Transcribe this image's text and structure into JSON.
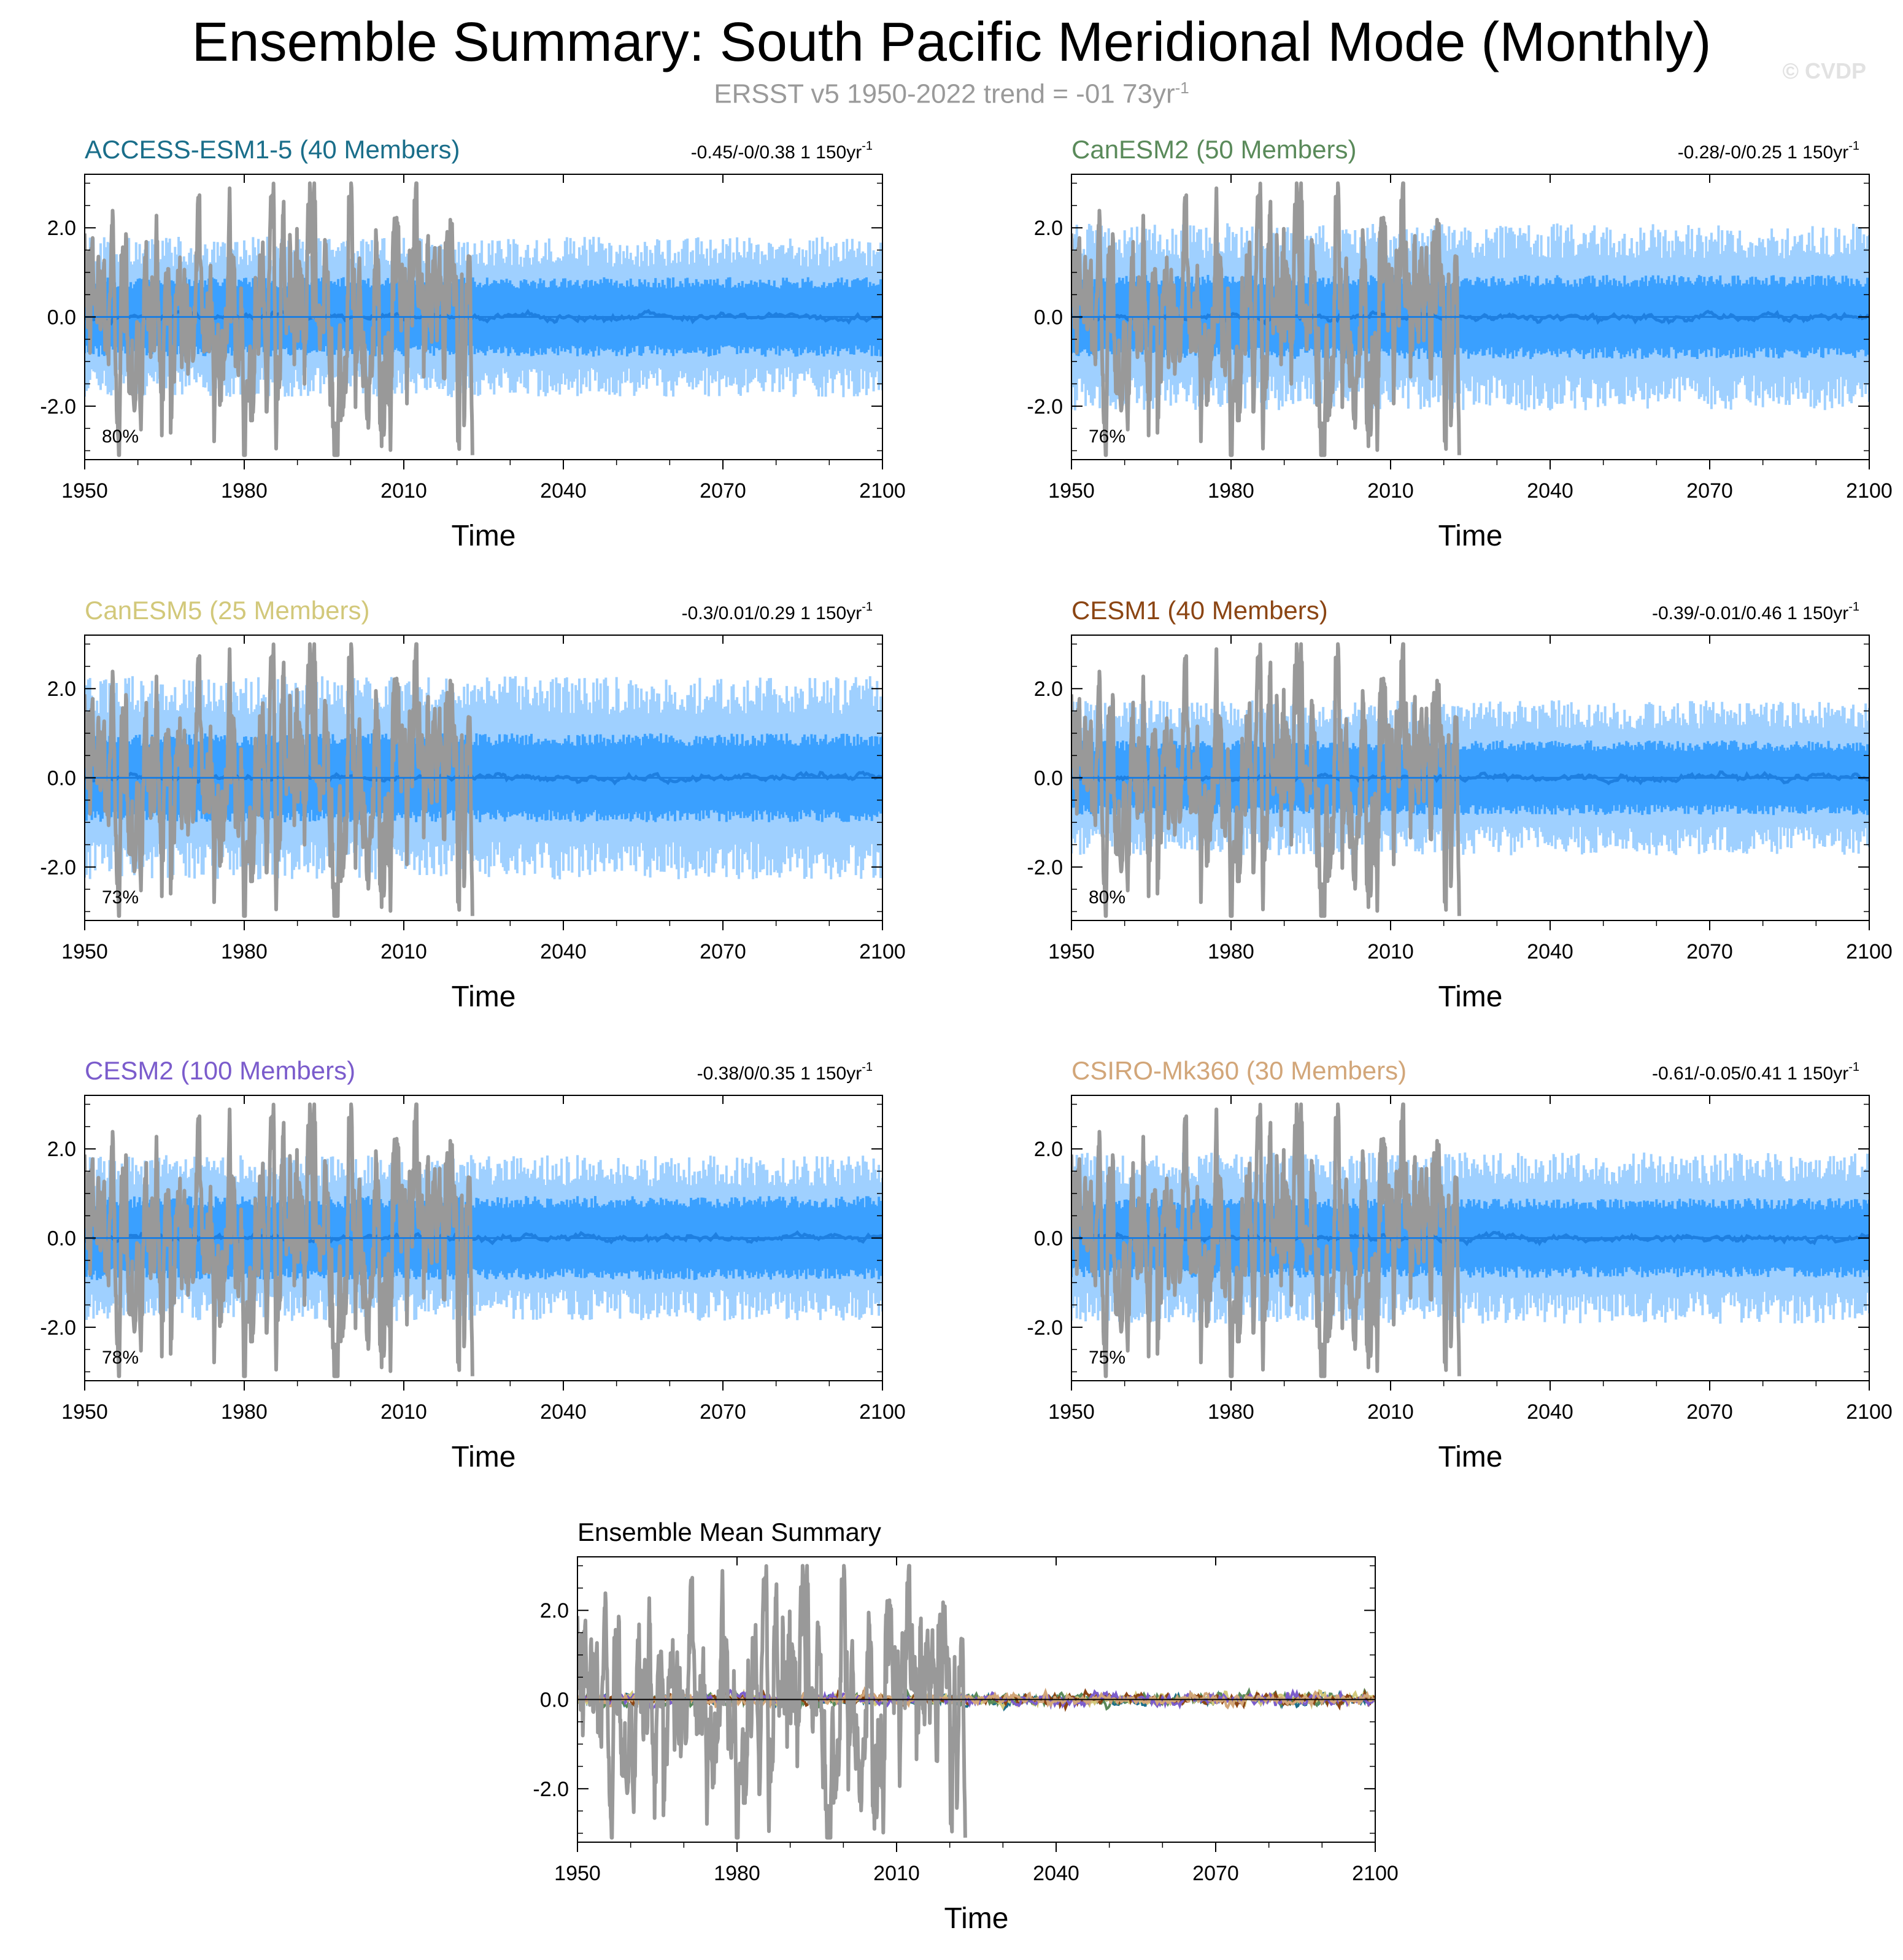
{
  "title": "Ensemble Summary: South Pacific Meridional Mode (Monthly)",
  "subtitle": "ERSST v5 1950-2022 trend = -01 73yr",
  "subtitle_sup": "-1",
  "watermark": "© CVDP",
  "colors": {
    "observed": "#999999",
    "spread_light": "#9fd0ff",
    "spread_dark": "#3aa0ff",
    "ensemble_mean": "#1e7fe0",
    "axis": "#000000"
  },
  "chart_data": [
    {
      "type": "line",
      "title": "ACCESS-ESM1-5 (40 Members)",
      "title_color": "#1a6e8a",
      "stats": "-0.45/-0/0.38 1 150yr",
      "stats_sup": "-1",
      "percent": "80%",
      "xlabel": "Time",
      "xlim": [
        1950,
        2100
      ],
      "ylim": [
        -3.2,
        3.2
      ],
      "xticks": [
        "1950",
        "1980",
        "2010",
        "2040",
        "2070",
        "2100"
      ],
      "yticks": [
        "2.0",
        "0.0",
        "-2.0"
      ],
      "observed_range": [
        1950,
        2022
      ],
      "spread_10_90": 0.85,
      "spread_min_max": 1.5
    },
    {
      "type": "line",
      "title": "CanESM2 (50 Members)",
      "title_color": "#5a8a5a",
      "stats": "-0.28/-0/0.25 1 150yr",
      "stats_sup": "-1",
      "percent": "76%",
      "xlabel": "Time",
      "xlim": [
        1950,
        2100
      ],
      "ylim": [
        -3.2,
        3.2
      ],
      "xticks": [
        "1950",
        "1980",
        "2010",
        "2040",
        "2070",
        "2100"
      ],
      "yticks": [
        "2.0",
        "0.0",
        "-2.0"
      ],
      "observed_range": [
        1950,
        2022
      ],
      "spread_10_90": 0.9,
      "spread_min_max": 1.75
    },
    {
      "type": "line",
      "title": "CanESM5 (25 Members)",
      "title_color": "#d2c87a",
      "stats": "-0.3/0.01/0.29 1 150yr",
      "stats_sup": "-1",
      "percent": "73%",
      "xlabel": "Time",
      "xlim": [
        1950,
        2100
      ],
      "ylim": [
        -3.2,
        3.2
      ],
      "xticks": [
        "1950",
        "1980",
        "2010",
        "2040",
        "2070",
        "2100"
      ],
      "yticks": [
        "2.0",
        "0.0",
        "-2.0"
      ],
      "observed_range": [
        1950,
        2022
      ],
      "spread_10_90": 0.95,
      "spread_min_max": 1.9
    },
    {
      "type": "line",
      "title": "CESM1 (40 Members)",
      "title_color": "#8b4513",
      "stats": "-0.39/-0.01/0.46 1 150yr",
      "stats_sup": "-1",
      "percent": "80%",
      "xlabel": "Time",
      "xlim": [
        1950,
        2100
      ],
      "ylim": [
        -3.2,
        3.2
      ],
      "xticks": [
        "1950",
        "1980",
        "2010",
        "2040",
        "2070",
        "2100"
      ],
      "yticks": [
        "2.0",
        "0.0",
        "-2.0"
      ],
      "observed_range": [
        1950,
        2022
      ],
      "spread_10_90": 0.8,
      "spread_min_max": 1.45
    },
    {
      "type": "line",
      "title": "CESM2 (100 Members)",
      "title_color": "#7b5ccc",
      "stats": "-0.38/0/0.35 1 150yr",
      "stats_sup": "-1",
      "percent": "78%",
      "xlabel": "Time",
      "xlim": [
        1950,
        2100
      ],
      "ylim": [
        -3.2,
        3.2
      ],
      "xticks": [
        "1950",
        "1980",
        "2010",
        "2040",
        "2070",
        "2100"
      ],
      "yticks": [
        "2.0",
        "0.0",
        "-2.0"
      ],
      "observed_range": [
        1950,
        2022
      ],
      "spread_10_90": 0.9,
      "spread_min_max": 1.55
    },
    {
      "type": "line",
      "title": "CSIRO-Mk360 (30 Members)",
      "title_color": "#d2a679",
      "stats": "-0.61/-0.05/0.41 1 150yr",
      "stats_sup": "-1",
      "percent": "75%",
      "xlabel": "Time",
      "xlim": [
        1950,
        2100
      ],
      "ylim": [
        -3.2,
        3.2
      ],
      "xticks": [
        "1950",
        "1980",
        "2010",
        "2040",
        "2070",
        "2100"
      ],
      "yticks": [
        "2.0",
        "0.0",
        "-2.0"
      ],
      "observed_range": [
        1950,
        2022
      ],
      "spread_10_90": 0.85,
      "spread_min_max": 1.6
    },
    {
      "type": "line",
      "title": "Ensemble Mean Summary",
      "title_color": "#000000",
      "stats": "",
      "stats_sup": "",
      "percent": "",
      "xlabel": "Time",
      "xlim": [
        1950,
        2100
      ],
      "ylim": [
        -3.2,
        3.2
      ],
      "xticks": [
        "1950",
        "1980",
        "2010",
        "2040",
        "2070",
        "2100"
      ],
      "yticks": [
        "2.0",
        "0.0",
        "-2.0"
      ],
      "observed_range": [
        1950,
        2022
      ],
      "ensemble_mean_colors": [
        "#1a6e8a",
        "#5a8a5a",
        "#d2c87a",
        "#8b4513",
        "#7b5ccc",
        "#d2a679"
      ]
    }
  ]
}
